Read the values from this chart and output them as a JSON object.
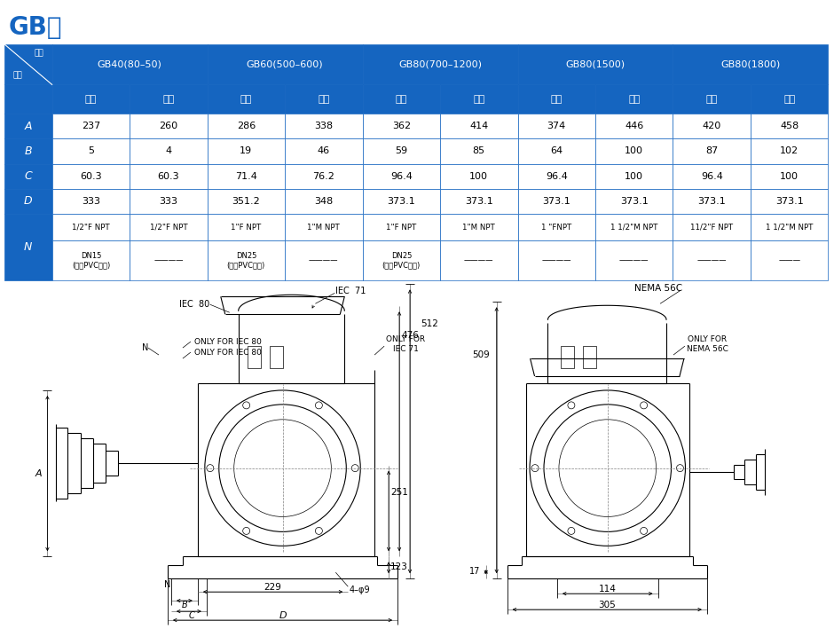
{
  "title": "GB泵",
  "title_color": "#1565C0",
  "title_fontsize": 20,
  "table_header_bg": "#1565C0",
  "table_header_color": "#FFFFFF",
  "table_border_color": "#1565C0",
  "col_groups": [
    "GB40(80–50)",
    "GB60(500–600)",
    "GB80(700–1200)",
    "GB80(1500)",
    "GB80(1800)"
  ],
  "sub_headers": [
    "塑料",
    "金属",
    "塑料",
    "金属",
    "塑料",
    "金属",
    "塑料",
    "金属",
    "塑料",
    "金属"
  ],
  "row_labels_abcd": [
    "A",
    "B",
    "C",
    "D"
  ],
  "rows": [
    [
      "237",
      "260",
      "286",
      "338",
      "362",
      "414",
      "374",
      "446",
      "420",
      "458"
    ],
    [
      "5",
      "4",
      "19",
      "46",
      "59",
      "85",
      "64",
      "100",
      "87",
      "102"
    ],
    [
      "60.3",
      "60.3",
      "71.4",
      "76.2",
      "96.4",
      "100",
      "96.4",
      "100",
      "96.4",
      "100"
    ],
    [
      "333",
      "333",
      "351.2",
      "348",
      "373.1",
      "373.1",
      "373.1",
      "373.1",
      "373.1",
      "373.1"
    ],
    [
      "1/2\"F NPT",
      "1/2\"F NPT",
      "1\"F NPT",
      "1\"M NPT",
      "1\"F NPT",
      "1\"M NPT",
      "1 \"FNPT",
      "1 1/2\"M NPT",
      "11/2\"F NPT",
      "1 1/2\"M NPT"
    ],
    [
      "DN15\n(仅用PVC泵头)",
      "————",
      "DN25\n(仅用PVC泵头)",
      "————",
      "DN25\n(仅用PVC泵头)",
      "————",
      "————",
      "————",
      "————",
      "———"
    ]
  ],
  "line_color": "#000000"
}
